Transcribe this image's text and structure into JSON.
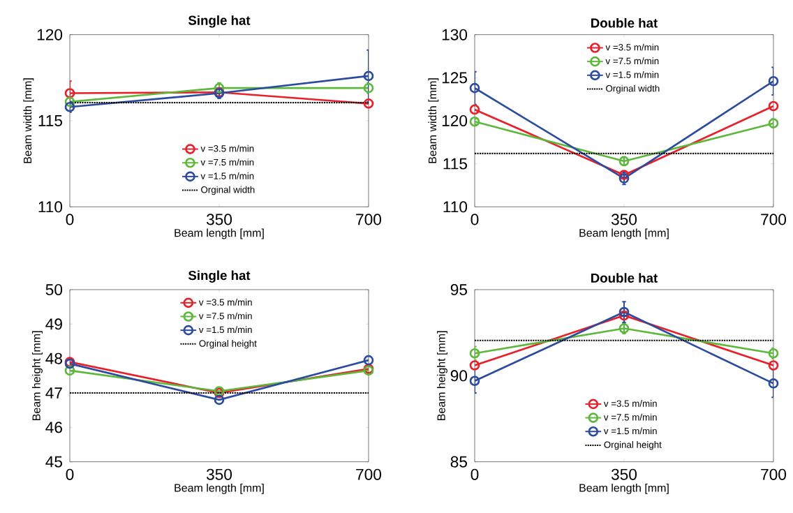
{
  "chart_data": [
    {
      "type": "line",
      "title": "Single hat",
      "xlabel": "Beam length [mm]",
      "ylabel": "Beam width [mm]",
      "x": [
        0,
        350,
        700
      ],
      "xlim": [
        0,
        700
      ],
      "xticks": [
        0,
        350,
        700
      ],
      "ylim": [
        110,
        120
      ],
      "yticks": [
        110,
        115,
        120
      ],
      "grid": false,
      "legend": "bottom",
      "marker": "circle",
      "line_style": "solid",
      "series": [
        {
          "name": "v  =3.5 m/min",
          "color": "#e8202a",
          "values": [
            116.6,
            116.65,
            116.0
          ],
          "errors": [
            0.7,
            null,
            null
          ]
        },
        {
          "name": "v  =7.5 m/min",
          "color": "#5cb83a",
          "values": [
            116.1,
            116.9,
            116.9
          ],
          "errors": [
            null,
            0.3,
            0.3
          ]
        },
        {
          "name": "v  =1.5 m/min",
          "color": "#2b4ba0",
          "values": [
            115.8,
            116.6,
            117.6
          ],
          "errors": [
            0.3,
            0.3,
            1.5
          ]
        }
      ],
      "ref_lines": [
        {
          "axis": "y",
          "value": 116.05,
          "label": "Orginal width",
          "color": "#000000",
          "line_style": "dotted"
        }
      ]
    },
    {
      "type": "line",
      "title": "Double hat",
      "xlabel": "Beam length [mm]",
      "ylabel": "Beam width [mm]",
      "x": [
        0,
        350,
        700
      ],
      "xlim": [
        0,
        700
      ],
      "xticks": [
        0,
        350,
        700
      ],
      "ylim": [
        110,
        130
      ],
      "yticks": [
        110,
        115,
        120,
        125,
        130
      ],
      "grid": false,
      "legend": "top",
      "marker": "circle",
      "line_style": "solid",
      "series": [
        {
          "name": "v  =3.5 m/min",
          "color": "#e8202a",
          "values": [
            121.3,
            113.7,
            121.7
          ]
        },
        {
          "name": "v  =7.5 m/min",
          "color": "#5cb83a",
          "values": [
            119.9,
            115.3,
            119.7
          ],
          "errors": [
            0.3,
            0.5,
            0.5
          ]
        },
        {
          "name": "v  =1.5 m/min",
          "color": "#2b4ba0",
          "values": [
            123.8,
            113.3,
            124.6
          ],
          "errors": [
            1.9,
            0.7,
            1.6
          ]
        }
      ],
      "ref_lines": [
        {
          "axis": "y",
          "value": 116.2,
          "label": "Orginal width",
          "color": "#000000",
          "line_style": "dotted"
        }
      ]
    },
    {
      "type": "line",
      "title": "Single hat",
      "xlabel": "Beam length [mm]",
      "ylabel": "Beam height [mm]",
      "x": [
        0,
        350,
        700
      ],
      "xlim": [
        0,
        700
      ],
      "xticks": [
        0,
        350,
        700
      ],
      "ylim": [
        45,
        50
      ],
      "yticks": [
        45,
        46,
        47,
        48,
        49,
        50
      ],
      "grid": false,
      "legend": "top",
      "marker": "circle",
      "line_style": "solid",
      "series": [
        {
          "name": "v  =3.5 m/min",
          "color": "#e8202a",
          "values": [
            47.9,
            47.0,
            47.7
          ]
        },
        {
          "name": "v  =7.5 m/min",
          "color": "#5cb83a",
          "values": [
            47.65,
            47.05,
            47.65
          ]
        },
        {
          "name": "v  =1.5 m/min",
          "color": "#2b4ba0",
          "values": [
            47.85,
            46.8,
            47.95
          ]
        }
      ],
      "ref_lines": [
        {
          "axis": "y",
          "value": 47.0,
          "label": "Orginal height",
          "color": "#000000",
          "line_style": "dotted"
        }
      ]
    },
    {
      "type": "line",
      "title": "Double hat",
      "xlabel": "Beam length [mm]",
      "ylabel": "Beam height [mm]",
      "x": [
        0,
        350,
        700
      ],
      "xlim": [
        0,
        700
      ],
      "xticks": [
        0,
        350,
        700
      ],
      "ylim": [
        85,
        95
      ],
      "yticks": [
        85,
        90,
        95
      ],
      "grid": false,
      "legend": "bottom",
      "marker": "circle",
      "line_style": "solid",
      "series": [
        {
          "name": "v  =3.5 m/min",
          "color": "#e8202a",
          "values": [
            90.6,
            93.5,
            90.6
          ]
        },
        {
          "name": "v  =7.5 m/min",
          "color": "#5cb83a",
          "values": [
            91.3,
            92.75,
            91.3
          ],
          "errors": [
            0.4,
            0.3,
            0.3
          ]
        },
        {
          "name": "v  =1.5 m/min",
          "color": "#2b4ba0",
          "values": [
            89.7,
            93.7,
            89.55
          ],
          "errors": [
            0.7,
            0.6,
            0.8
          ]
        }
      ],
      "ref_lines": [
        {
          "axis": "y",
          "value": 92.05,
          "label": "Orginal height",
          "color": "#000000",
          "line_style": "dotted"
        }
      ]
    }
  ]
}
